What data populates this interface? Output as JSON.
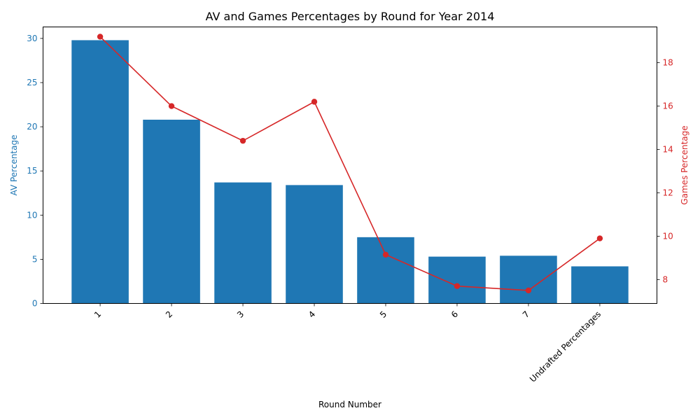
{
  "chart_data": {
    "type": "bar+line",
    "title": "AV and Games Percentages by Round for Year 2014",
    "xlabel": "Round Number",
    "categories": [
      "1",
      "2",
      "3",
      "4",
      "5",
      "6",
      "7",
      "Undrafted Percentages"
    ],
    "y_left": {
      "label": "AV Percentage",
      "ylim": [
        0,
        31.3
      ],
      "ticks": [
        0,
        5,
        10,
        15,
        20,
        25,
        30
      ],
      "color": "#1f77b4"
    },
    "y_right": {
      "label": "Games Percentage",
      "ylim": [
        6.9,
        19.65
      ],
      "ticks": [
        8,
        10,
        12,
        14,
        16,
        18
      ],
      "color": "#d62728"
    },
    "series": [
      {
        "type": "bar",
        "axis": "left",
        "values": [
          29.8,
          20.8,
          13.7,
          13.4,
          7.5,
          5.3,
          5.4,
          4.2
        ]
      },
      {
        "type": "line",
        "axis": "right",
        "values": [
          19.2,
          16.0,
          14.4,
          16.2,
          9.15,
          7.7,
          7.5,
          9.9
        ]
      }
    ],
    "grid": false
  }
}
